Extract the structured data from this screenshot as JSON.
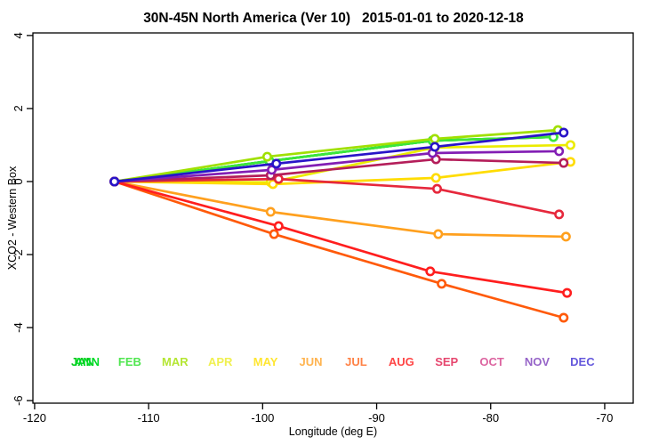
{
  "chart_data": {
    "type": "line",
    "title": "30N-45N North America (Ver 10)   2015-01-01 to 2020-12-18",
    "xlabel": "Longitude (deg E)",
    "ylabel": "XCO2 - Western Box",
    "xlim": [
      -120.15,
      -67.5
    ],
    "ylim": [
      -6.07,
      4.07
    ],
    "xticks": [
      -120,
      -110,
      -100,
      -90,
      -80,
      -70
    ],
    "yticks": [
      -6,
      -4,
      -2,
      0,
      2,
      4
    ],
    "grid": false,
    "legend_position": "inside-bottom",
    "marker": "open-circle",
    "series": [
      {
        "name": "ANN",
        "color": "#00DC28",
        "x": [
          -113.0,
          -99.4,
          -85.1,
          -74.5
        ],
        "y": [
          0,
          0.56,
          1.12,
          1.22
        ]
      },
      {
        "name": "JAN",
        "color": "#00C819",
        "x": [
          -113.0,
          -99.4,
          -85.1,
          -74.5
        ],
        "y": [
          0,
          0.56,
          1.12,
          1.22
        ]
      },
      {
        "name": "FEB",
        "color": "#3CE63C",
        "x": [
          -113.0,
          -99.4,
          -85.1,
          -74.5
        ],
        "y": [
          0,
          0.56,
          1.12,
          1.22
        ]
      },
      {
        "name": "MAR",
        "color": "#A0E000",
        "x": [
          -113.0,
          -99.6,
          -84.9,
          -74.1
        ],
        "y": [
          0,
          0.68,
          1.17,
          1.41
        ]
      },
      {
        "name": "APR",
        "color": "#EBEB00",
        "x": [
          -113.0,
          -99.3,
          -84.9,
          -73.0
        ],
        "y": [
          0,
          -0.02,
          0.93,
          1.0
        ]
      },
      {
        "name": "MAY",
        "color": "#FFDC00",
        "x": [
          -113.0,
          -99.1,
          -84.8,
          -73.0
        ],
        "y": [
          0,
          -0.07,
          0.1,
          0.54
        ]
      },
      {
        "name": "JUN",
        "color": "#FFA01E",
        "x": [
          -113.0,
          -99.3,
          -84.6,
          -73.4
        ],
        "y": [
          0,
          -0.83,
          -1.44,
          -1.51
        ]
      },
      {
        "name": "JUL",
        "color": "#FF5A0A",
        "x": [
          -113.0,
          -99.0,
          -84.3,
          -73.6
        ],
        "y": [
          0,
          -1.44,
          -2.8,
          -3.73
        ]
      },
      {
        "name": "AUG",
        "color": "#FF1E1E",
        "x": [
          -113.0,
          -98.6,
          -85.3,
          -73.3
        ],
        "y": [
          0,
          -1.22,
          -2.46,
          -3.05
        ]
      },
      {
        "name": "SEP",
        "color": "#E6283C",
        "x": [
          -113.0,
          -98.6,
          -84.7,
          -74.0
        ],
        "y": [
          0,
          0.07,
          -0.2,
          -0.9
        ]
      },
      {
        "name": "OCT",
        "color": "#B41E5A",
        "x": [
          -113.0,
          -99.3,
          -84.8,
          -73.6
        ],
        "y": [
          0,
          0.17,
          0.61,
          0.51
        ]
      },
      {
        "name": "NOV",
        "color": "#821EB4",
        "x": [
          -113.0,
          -99.2,
          -85.1,
          -74.0
        ],
        "y": [
          0,
          0.32,
          0.78,
          0.83
        ]
      },
      {
        "name": "DEC",
        "color": "#2814C8",
        "x": [
          -113.0,
          -98.8,
          -84.9,
          -73.6
        ],
        "y": [
          0,
          0.49,
          0.95,
          1.34
        ]
      }
    ],
    "legend": [
      {
        "label": "JAN",
        "color": "#00C819",
        "slot": 0,
        "dx": -2
      },
      {
        "label": "ANN",
        "color": "#00DC28",
        "slot": 0,
        "dx": 3
      },
      {
        "label": "FEB",
        "color": "#50E650",
        "slot": 1,
        "dx": 0
      },
      {
        "label": "MAR",
        "color": "#B4E632",
        "slot": 2,
        "dx": 0
      },
      {
        "label": "APR",
        "color": "#F0F050",
        "slot": 3,
        "dx": 0
      },
      {
        "label": "MAY",
        "color": "#FFE632",
        "slot": 4,
        "dx": 0
      },
      {
        "label": "JUN",
        "color": "#FFB450",
        "slot": 5,
        "dx": 0
      },
      {
        "label": "JUL",
        "color": "#FF8246",
        "slot": 6,
        "dx": 0
      },
      {
        "label": "AUG",
        "color": "#FF4646",
        "slot": 7,
        "dx": 0
      },
      {
        "label": "SEP",
        "color": "#E6466E",
        "slot": 8,
        "dx": 0
      },
      {
        "label": "OCT",
        "color": "#DC64A0",
        "slot": 9,
        "dx": 0
      },
      {
        "label": "NOV",
        "color": "#9664C8",
        "slot": 10,
        "dx": 0
      },
      {
        "label": "DEC",
        "color": "#6458DC",
        "slot": 11,
        "dx": 0
      }
    ],
    "axis_color": "#000000",
    "background": "#ffffff"
  }
}
